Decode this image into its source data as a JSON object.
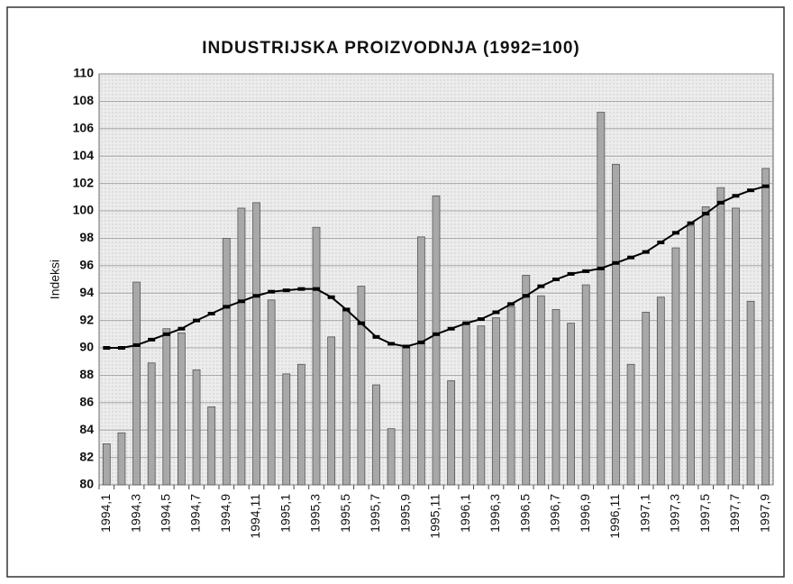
{
  "chart_data": {
    "type": "bar",
    "title": "INDUSTRIJSKA PROIZVODNJA (1992=100)",
    "y_label": "Indeksi",
    "categories": [
      "1994,1",
      null,
      "1994,3",
      null,
      "1994,5",
      null,
      "1994,7",
      null,
      "1994,9",
      null,
      "1994,11",
      null,
      "1995,1",
      null,
      "1995,3",
      null,
      "1995,5",
      null,
      "1995,7",
      null,
      "1995,9",
      null,
      "1995,11",
      null,
      "1996,1",
      null,
      "1996,3",
      null,
      "1996,5",
      null,
      "1996,7",
      null,
      "1996,9",
      null,
      "1996,11",
      null,
      "1997,1",
      null,
      "1997,3",
      null,
      "1997,5",
      null,
      "1997,7",
      null,
      "1997,9"
    ],
    "series": [
      {
        "type": "bar",
        "color": "#a8a8a8",
        "values": [
          83,
          83.8,
          94.8,
          88.9,
          91.4,
          91.1,
          88.4,
          85.7,
          98,
          100.2,
          100.6,
          93.5,
          88.1,
          88.8,
          98.8,
          90.8,
          92.9,
          94.5,
          87.3,
          84.1,
          90.1,
          98.1,
          101.1,
          87.6,
          91.8,
          91.6,
          92.2,
          93,
          95.3,
          93.8,
          92.8,
          91.8,
          94.6,
          107.2,
          103.4,
          88.8,
          92.6,
          93.7,
          97.3,
          98.9,
          100.3,
          101.7,
          100.2,
          93.4,
          103.1
        ]
      },
      {
        "type": "line",
        "color": "#000000",
        "values": [
          90,
          90,
          90.2,
          90.6,
          91,
          91.4,
          92,
          92.5,
          93,
          93.4,
          93.8,
          94.1,
          94.2,
          94.3,
          94.3,
          93.7,
          92.8,
          91.8,
          90.8,
          90.3,
          90.1,
          90.4,
          91,
          91.4,
          91.8,
          92.1,
          92.6,
          93.2,
          93.8,
          94.5,
          95,
          95.4,
          95.6,
          95.8,
          96.2,
          96.6,
          97,
          97.7,
          98.4,
          99.1,
          99.8,
          100.6,
          101.1,
          101.5,
          101.8
        ]
      }
    ],
    "ylim": [
      80,
      110
    ],
    "yticks": [
      80,
      82,
      84,
      86,
      88,
      90,
      92,
      94,
      96,
      98,
      100,
      102,
      104,
      106,
      108,
      110
    ],
    "grid": true
  }
}
